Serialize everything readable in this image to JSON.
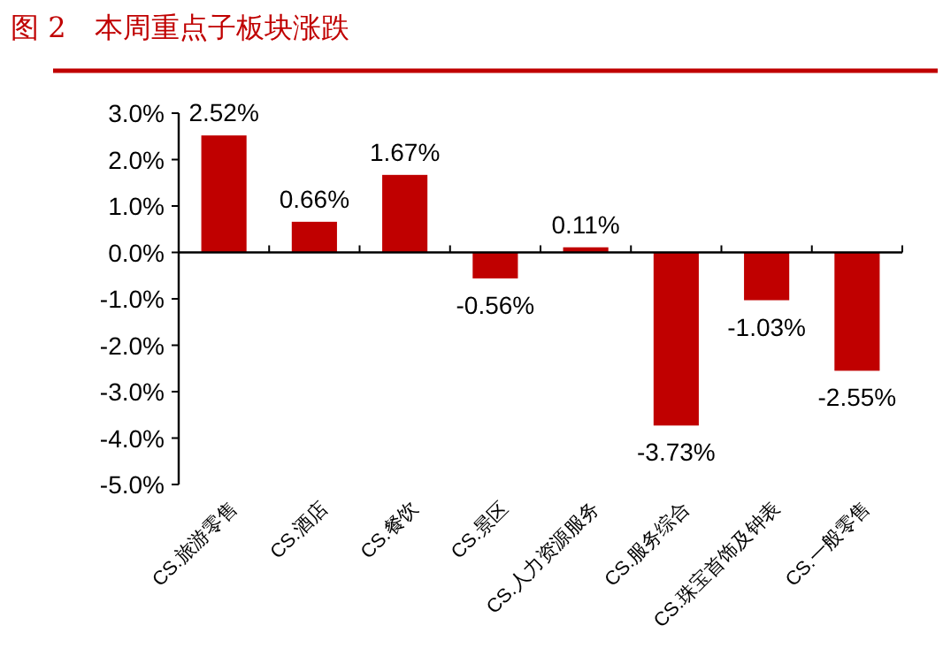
{
  "chart_data": {
    "type": "bar",
    "title": "图 2　本周重点子板块涨跌",
    "categories": [
      "CS.旅游零售",
      "CS.酒店",
      "CS.餐饮",
      "CS.景区",
      "CS.人力资源服务",
      "CS.服务综合",
      "CS.珠宝首饰及钟表",
      "CS.一般零售"
    ],
    "values": [
      2.52,
      0.66,
      1.67,
      -0.56,
      0.11,
      -3.73,
      -1.03,
      -2.55
    ],
    "color": "#c00000",
    "ylim": [
      -5,
      3
    ],
    "yticks": [
      {
        "value": -5,
        "label": "-5.0%"
      },
      {
        "value": -4,
        "label": "-4.0%"
      },
      {
        "value": -3,
        "label": "-3.0%"
      },
      {
        "value": -2,
        "label": "-2.0%"
      },
      {
        "value": -1,
        "label": "-1.0%"
      },
      {
        "value": 0,
        "label": "0.0%"
      },
      {
        "value": 1,
        "label": "1.0%"
      },
      {
        "value": 2,
        "label": "2.0%"
      },
      {
        "value": 3,
        "label": "3.0%"
      }
    ],
    "value_labels": [
      "2.52%",
      "0.66%",
      "1.67%",
      "-0.56%",
      "0.11%",
      "-3.73%",
      "-1.03%",
      "-2.55%"
    ]
  }
}
